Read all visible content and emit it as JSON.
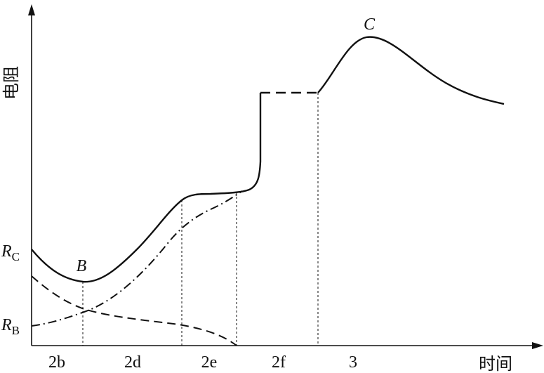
{
  "figure": {
    "y_axis_label": "电阻",
    "x_axis_label": "时间",
    "y_ticks": {
      "rc": {
        "main": "R",
        "sub": "C"
      },
      "rb": {
        "main": "R",
        "sub": "B"
      }
    },
    "points": {
      "b": "B",
      "c": "C"
    },
    "stages": [
      "2b",
      "2d",
      "2e",
      "2f",
      "3"
    ]
  },
  "colors": {
    "ink": "#111111",
    "background": "#ffffff"
  }
}
